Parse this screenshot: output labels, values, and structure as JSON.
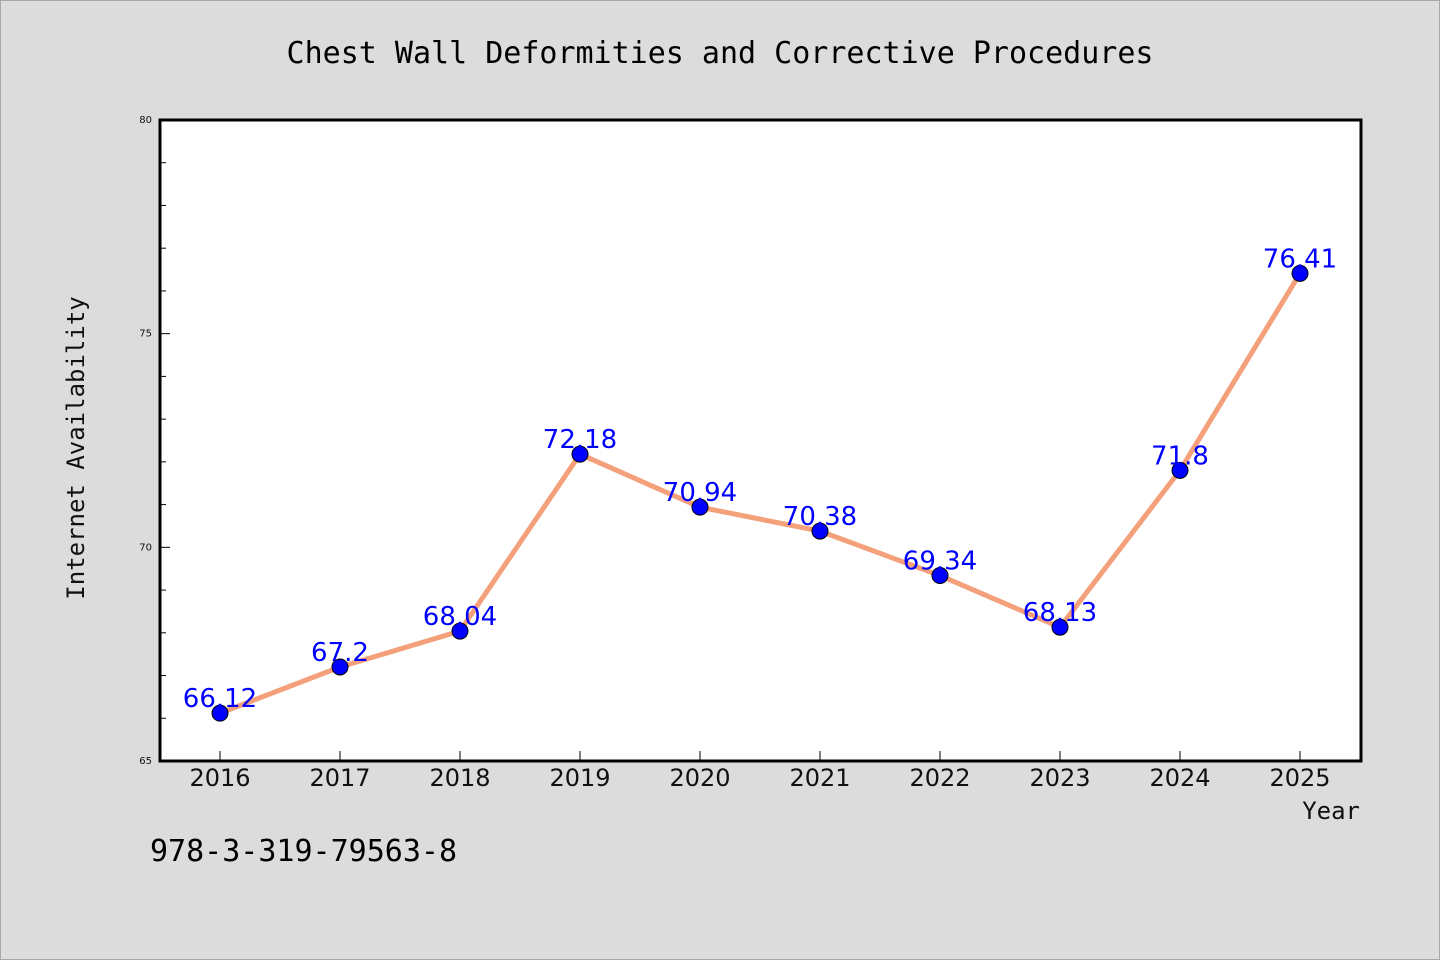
{
  "chart_data": {
    "type": "line",
    "title": "Chest Wall Deformities and Corrective Procedures",
    "xlabel": "Year",
    "ylabel": "Internet Availability",
    "categories": [
      "2016",
      "2017",
      "2018",
      "2019",
      "2020",
      "2021",
      "2022",
      "2023",
      "2024",
      "2025"
    ],
    "series": [
      {
        "values": [
          66.12,
          67.2,
          68.04,
          72.18,
          70.94,
          70.38,
          69.34,
          68.13,
          71.8,
          76.41
        ],
        "labels": [
          "66.12",
          "67.2",
          "68.04",
          "72.18",
          "70.94",
          "70.38",
          "69.34",
          "68.13",
          "71.8",
          "76.41"
        ]
      }
    ],
    "ylim": [
      65,
      80
    ],
    "yticks": [
      "65",
      "70",
      "75",
      "80"
    ],
    "grid": false,
    "colors": {
      "line": "#f4a07a",
      "marker": "#0000ff",
      "labels": "#0000ff"
    }
  },
  "footer": {
    "isbn": "978-3-319-79563-8"
  }
}
